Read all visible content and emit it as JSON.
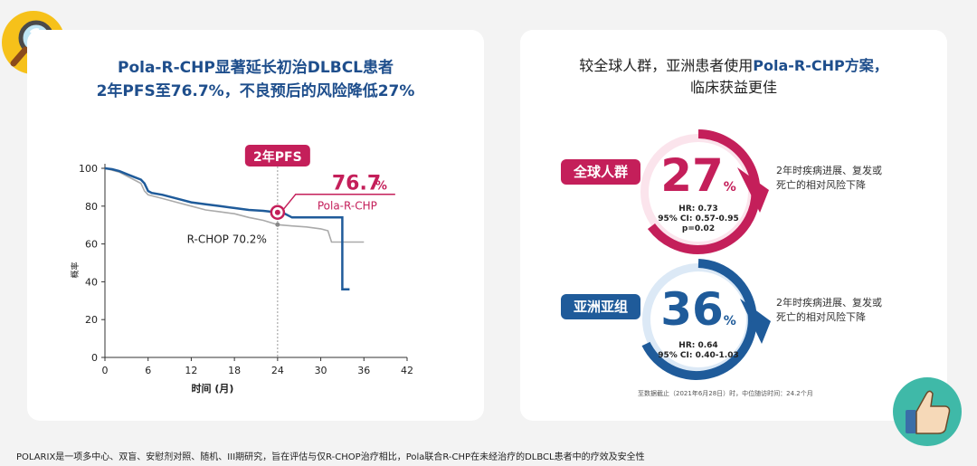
{
  "left_panel": {
    "title_line1": "Pola-R-CHP显著延长初治DLBCL患者",
    "title_line2": "2年PFS至76.7%，不良预后的风险降低27%"
  },
  "chart_data": {
    "type": "line",
    "xlabel": "时间 (月)",
    "ylabel": "概率",
    "xlim": [
      0,
      42
    ],
    "ylim": [
      0,
      100
    ],
    "xticks": [
      0,
      6,
      12,
      18,
      24,
      30,
      36,
      42
    ],
    "yticks": [
      0,
      20,
      40,
      60,
      80,
      100
    ],
    "series": [
      {
        "name": "Pola-R-CHP",
        "color": "#1f5b9a",
        "x": [
          0,
          1,
          2,
          3,
          4,
          5,
          5.5,
          6,
          6.5,
          8,
          10,
          12,
          14,
          16,
          18,
          20,
          22,
          24,
          25,
          26,
          28,
          30,
          32,
          33,
          33,
          34
        ],
        "y": [
          100,
          99.5,
          98.5,
          97,
          95.5,
          94,
          92,
          88,
          87,
          86,
          84,
          82,
          81,
          80,
          79,
          78,
          77.5,
          76.7,
          76,
          74,
          74,
          74,
          74,
          74,
          36,
          36
        ]
      },
      {
        "name": "R-CHOP",
        "color": "#aaaaaa",
        "x": [
          0,
          1,
          2,
          3,
          4,
          5,
          5.5,
          6,
          8,
          10,
          12,
          14,
          16,
          18,
          20,
          22,
          24,
          26,
          28,
          30,
          31,
          31.5,
          32,
          34,
          36
        ],
        "y": [
          100,
          99,
          98,
          96,
          94,
          92,
          88,
          86,
          84,
          82,
          80,
          78,
          77,
          76,
          74,
          72.5,
          70.2,
          69.5,
          69,
          68,
          67,
          61,
          61,
          61,
          61
        ]
      }
    ],
    "annotations": {
      "pfs_label": "2年PFS",
      "pola_value": "76.7",
      "pola_unit": "%",
      "pola_label": "Pola-R-CHP",
      "rchop_label": "R-CHOP 70.2%",
      "marker_x": 24
    }
  },
  "right_panel": {
    "title_line1_a": "较全球人群，亚洲患者使用",
    "title_line1_b": "Pola-R-CHP方案，",
    "title_line2": "临床获益更佳",
    "global": {
      "tag": "全球人群",
      "value": "27",
      "unit": "%",
      "hr": "HR: 0.73",
      "ci": "95% CI: 0.57-0.95",
      "p": "p=0.02",
      "desc_line1": "2年时疾病进展、复发或",
      "desc_line2": "死亡的相对风险下降",
      "color": "#c41f5a"
    },
    "asia": {
      "tag": "亚洲亚组",
      "value": "36",
      "unit": "%",
      "hr": "HR: 0.64",
      "ci": "95% CI: 0.40-1.03",
      "desc_line1": "2年时疾病进展、复发或",
      "desc_line2": "死亡的相对风险下降",
      "color": "#1f5b9a"
    },
    "note": "至数据截止（2021年6月28日）时，中位随访时间：24.2个月"
  },
  "footnote": "POLARIX是一项多中心、双盲、安慰剂对照、随机、III期研究，旨在评估与仅R-CHOP治疗相比，Pola联合R-CHP在未经治疗的DLBCL患者中的疗效及安全性",
  "icons": [
    "magnifier-icon",
    "thumbs-up-icon"
  ]
}
